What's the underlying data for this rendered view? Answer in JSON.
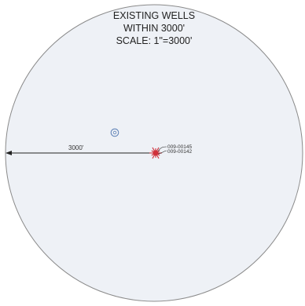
{
  "title": {
    "line1": "EXISTING WELLS",
    "line2": "WITHIN 3000'",
    "line3": "SCALE: 1\"=3000'"
  },
  "radius": {
    "label": "3000'"
  },
  "wells": [
    {
      "label": "009-00145"
    },
    {
      "label": "009-00142"
    }
  ],
  "colors": {
    "circle_fill": "#eef1f6",
    "circle_stroke": "#8a8a8a",
    "subject_well": "#d0303a",
    "existing_well": "#5a7fb5",
    "line": "#222222"
  },
  "icons": {
    "subject_well": "starburst-well-symbol",
    "existing_well": "circled-well-symbol"
  }
}
